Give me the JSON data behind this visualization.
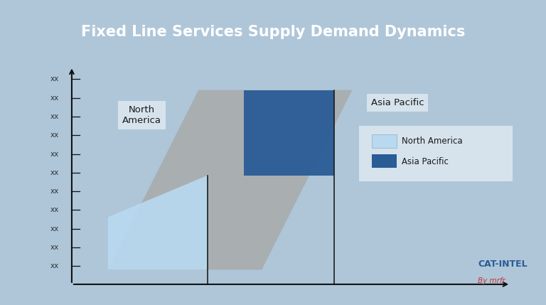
{
  "title": "Fixed Line Services Supply Demand Dynamics",
  "title_bg_color": "#1b3f6a",
  "title_text_color": "#ffffff",
  "bg_color": "#aec6d8",
  "ytick_labels": [
    "xx",
    "xx",
    "xx",
    "xx",
    "xx",
    "xx",
    "xx",
    "xx",
    "xx",
    "xx",
    "xx"
  ],
  "na_color": "#b8d9f0",
  "na_alpha": 0.92,
  "gray_color": "#a8a8a8",
  "gray_alpha": 0.8,
  "ap_color": "#2a5c96",
  "ap_alpha": 0.95,
  "na_label": "North\nAmerica",
  "ap_label": "Asia Pacific",
  "legend_na_label": "North America",
  "legend_ap_label": "Asia Pacific",
  "legend_na_color": "#b8d9f0",
  "legend_ap_color": "#2a5c96",
  "axis_color": "#111111",
  "tick_color": "#333333",
  "watermark1": "CAT-INTEL",
  "watermark2": "By mrfr",
  "gray_pts": [
    [
      0.08,
      0.3
    ],
    [
      0.42,
      0.3
    ],
    [
      0.62,
      10.2
    ],
    [
      0.28,
      10.2
    ]
  ],
  "na_pts": [
    [
      0.08,
      0.3
    ],
    [
      0.3,
      0.3
    ],
    [
      0.3,
      5.5
    ],
    [
      0.08,
      3.2
    ]
  ],
  "ap_pts": [
    [
      0.38,
      5.5
    ],
    [
      0.58,
      5.5
    ],
    [
      0.58,
      10.2
    ],
    [
      0.38,
      10.2
    ]
  ],
  "vline1_x": 0.3,
  "vline1_ymax": 5.5,
  "vline2_x": 0.58,
  "vline2_ymax": 10.2,
  "xlim": [
    -0.05,
    1.0
  ],
  "ylim": [
    -0.8,
    11.8
  ],
  "n_ticks": 11
}
